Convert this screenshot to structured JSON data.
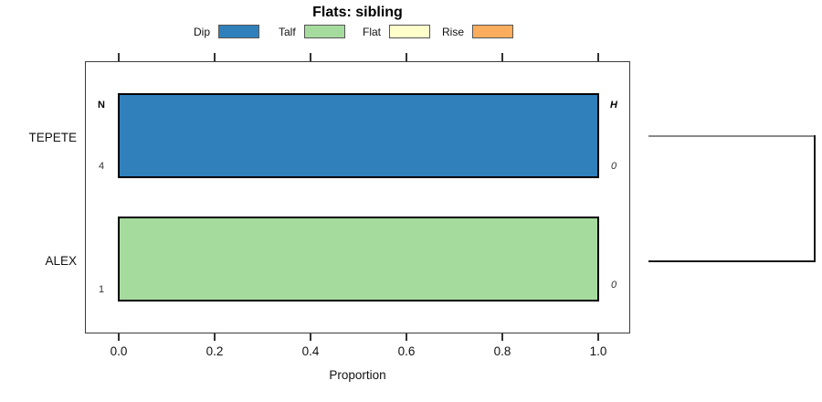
{
  "title": "Flats: sibling",
  "legend": {
    "items": [
      {
        "label": "Dip",
        "color": "#3080BC"
      },
      {
        "label": "Talf",
        "color": "#A6DB9E"
      },
      {
        "label": "Flat",
        "color": "#FFFFCC"
      },
      {
        "label": "Rise",
        "color": "#FBAD5E"
      }
    ]
  },
  "chart_data": {
    "type": "bar",
    "orientation": "horizontal",
    "stacked": true,
    "title": "Flats: sibling",
    "xlabel": "Proportion",
    "xlim": [
      0,
      1
    ],
    "x_ticks": [
      "0.0",
      "0.2",
      "0.4",
      "0.6",
      "0.8",
      "1.0"
    ],
    "grid": false,
    "legend_position": "top",
    "categories": [
      "TEPETE",
      "ALEX"
    ],
    "series": [
      {
        "name": "Dip",
        "color": "#3080BC",
        "values": [
          1.0,
          0.0
        ]
      },
      {
        "name": "Talf",
        "color": "#A6DB9E",
        "values": [
          0.0,
          1.0
        ]
      },
      {
        "name": "Flat",
        "color": "#FFFFCC",
        "values": [
          0.0,
          0.0
        ]
      },
      {
        "name": "Rise",
        "color": "#FBAD5E",
        "values": [
          0.0,
          0.0
        ]
      }
    ],
    "row_annotations": {
      "left_header": "N",
      "right_header": "H",
      "left_values": [
        "4",
        "1"
      ],
      "right_values": [
        "0",
        "0"
      ]
    },
    "right_marginal": "cluster bracket joining TEPETE and ALEX rows"
  }
}
